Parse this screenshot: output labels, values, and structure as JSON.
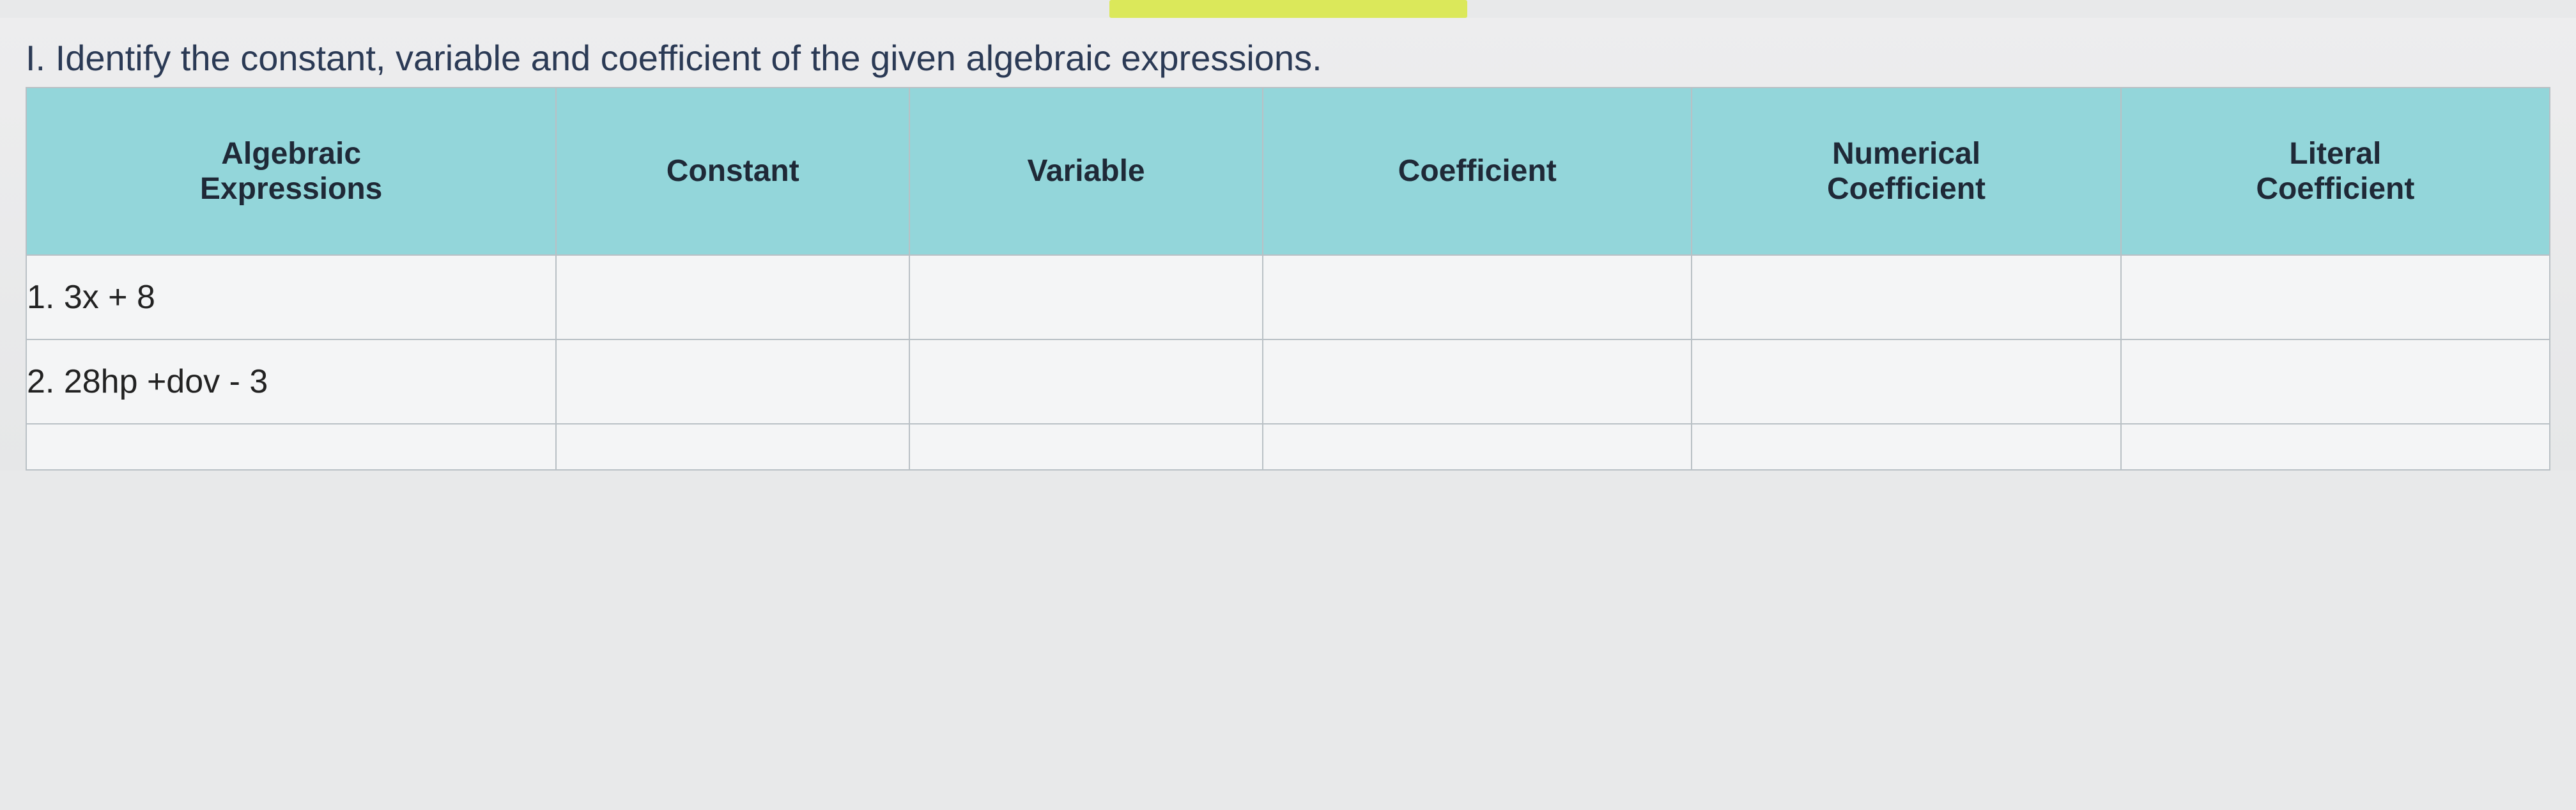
{
  "instruction": "I. Identify the constant, variable and coefficient of the given algebraic expressions.",
  "table": {
    "header_bg": "#93d6da",
    "cell_bg": "#f4f5f6",
    "border_color": "#b9c0c5",
    "columns": [
      {
        "label": "Algebraic\nExpressions",
        "width_pct": 21
      },
      {
        "label": "Constant",
        "width_pct": 14
      },
      {
        "label": "Variable",
        "width_pct": 14
      },
      {
        "label": "Coefficient",
        "width_pct": 17
      },
      {
        "label": "Numerical\nCoefficient",
        "width_pct": 17
      },
      {
        "label": "Literal\nCoefficient",
        "width_pct": 17
      }
    ],
    "rows": [
      {
        "expression": "1.  3x + 8",
        "constant": "",
        "variable": "",
        "coefficient": "",
        "numerical": "",
        "literal": ""
      },
      {
        "expression": "2.  28hp +dov - 3",
        "constant": "",
        "variable": "",
        "coefficient": "",
        "numerical": "",
        "literal": ""
      }
    ],
    "fragment_row_expression": ""
  },
  "highlight_color": "#dbe85a",
  "page_bg": "#e8e9ea",
  "text_color": "#2b3a55"
}
